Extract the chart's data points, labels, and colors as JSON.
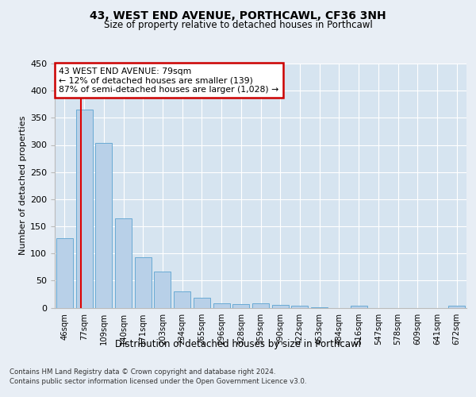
{
  "title1": "43, WEST END AVENUE, PORTHCAWL, CF36 3NH",
  "title2": "Size of property relative to detached houses in Porthcawl",
  "xlabel": "Distribution of detached houses by size in Porthcawl",
  "ylabel": "Number of detached properties",
  "categories": [
    "46sqm",
    "77sqm",
    "109sqm",
    "140sqm",
    "171sqm",
    "203sqm",
    "234sqm",
    "265sqm",
    "296sqm",
    "328sqm",
    "359sqm",
    "390sqm",
    "422sqm",
    "453sqm",
    "484sqm",
    "516sqm",
    "547sqm",
    "578sqm",
    "609sqm",
    "641sqm",
    "672sqm"
  ],
  "values": [
    128,
    365,
    304,
    164,
    93,
    67,
    30,
    18,
    8,
    6,
    8,
    5,
    4,
    1,
    0,
    3,
    0,
    0,
    0,
    0,
    4
  ],
  "bar_color": "#b8d0e8",
  "bar_edge_color": "#6aaad4",
  "annotation_text_line1": "43 WEST END AVENUE: 79sqm",
  "annotation_text_line2": "← 12% of detached houses are smaller (139)",
  "annotation_text_line3": "87% of semi-detached houses are larger (1,028) →",
  "annotation_box_color": "#ffffff",
  "annotation_box_edge": "#cc0000",
  "vline_color": "#dd0000",
  "vline_x": 0.83,
  "ylim": [
    0,
    450
  ],
  "yticks": [
    0,
    50,
    100,
    150,
    200,
    250,
    300,
    350,
    400,
    450
  ],
  "footer1": "Contains HM Land Registry data © Crown copyright and database right 2024.",
  "footer2": "Contains public sector information licensed under the Open Government Licence v3.0.",
  "bg_color": "#e8eef5",
  "plot_bg_color": "#d6e4f0",
  "grid_color": "#ffffff"
}
